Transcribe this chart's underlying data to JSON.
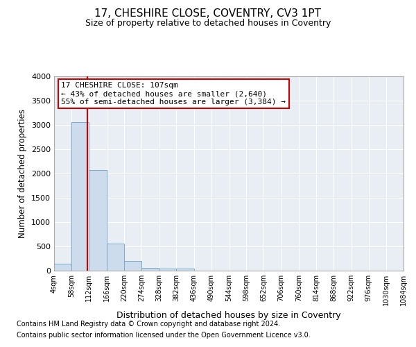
{
  "title1": "17, CHESHIRE CLOSE, COVENTRY, CV3 1PT",
  "title2": "Size of property relative to detached houses in Coventry",
  "xlabel": "Distribution of detached houses by size in Coventry",
  "ylabel": "Number of detached properties",
  "bin_edges": [
    4,
    58,
    112,
    166,
    220,
    274,
    328,
    382,
    436,
    490,
    544,
    598,
    652,
    706,
    760,
    814,
    868,
    922,
    976,
    1030,
    1084
  ],
  "bin_counts": [
    150,
    3050,
    2070,
    560,
    200,
    60,
    50,
    50,
    0,
    0,
    0,
    0,
    0,
    0,
    0,
    0,
    0,
    0,
    0,
    0
  ],
  "bar_color": "#ccdcec",
  "bar_edgecolor": "#7aaac8",
  "vline_x": 107,
  "vline_color": "#cc0000",
  "annotation_text": "17 CHESHIRE CLOSE: 107sqm\n← 43% of detached houses are smaller (2,640)\n55% of semi-detached houses are larger (3,384) →",
  "annotation_box_color": "#cc0000",
  "ylim": [
    0,
    4000
  ],
  "yticks": [
    0,
    500,
    1000,
    1500,
    2000,
    2500,
    3000,
    3500,
    4000
  ],
  "fig_background": "#ffffff",
  "plot_background": "#e8eef4",
  "grid_color": "#ffffff",
  "footer1": "Contains HM Land Registry data © Crown copyright and database right 2024.",
  "footer2": "Contains public sector information licensed under the Open Government Licence v3.0."
}
